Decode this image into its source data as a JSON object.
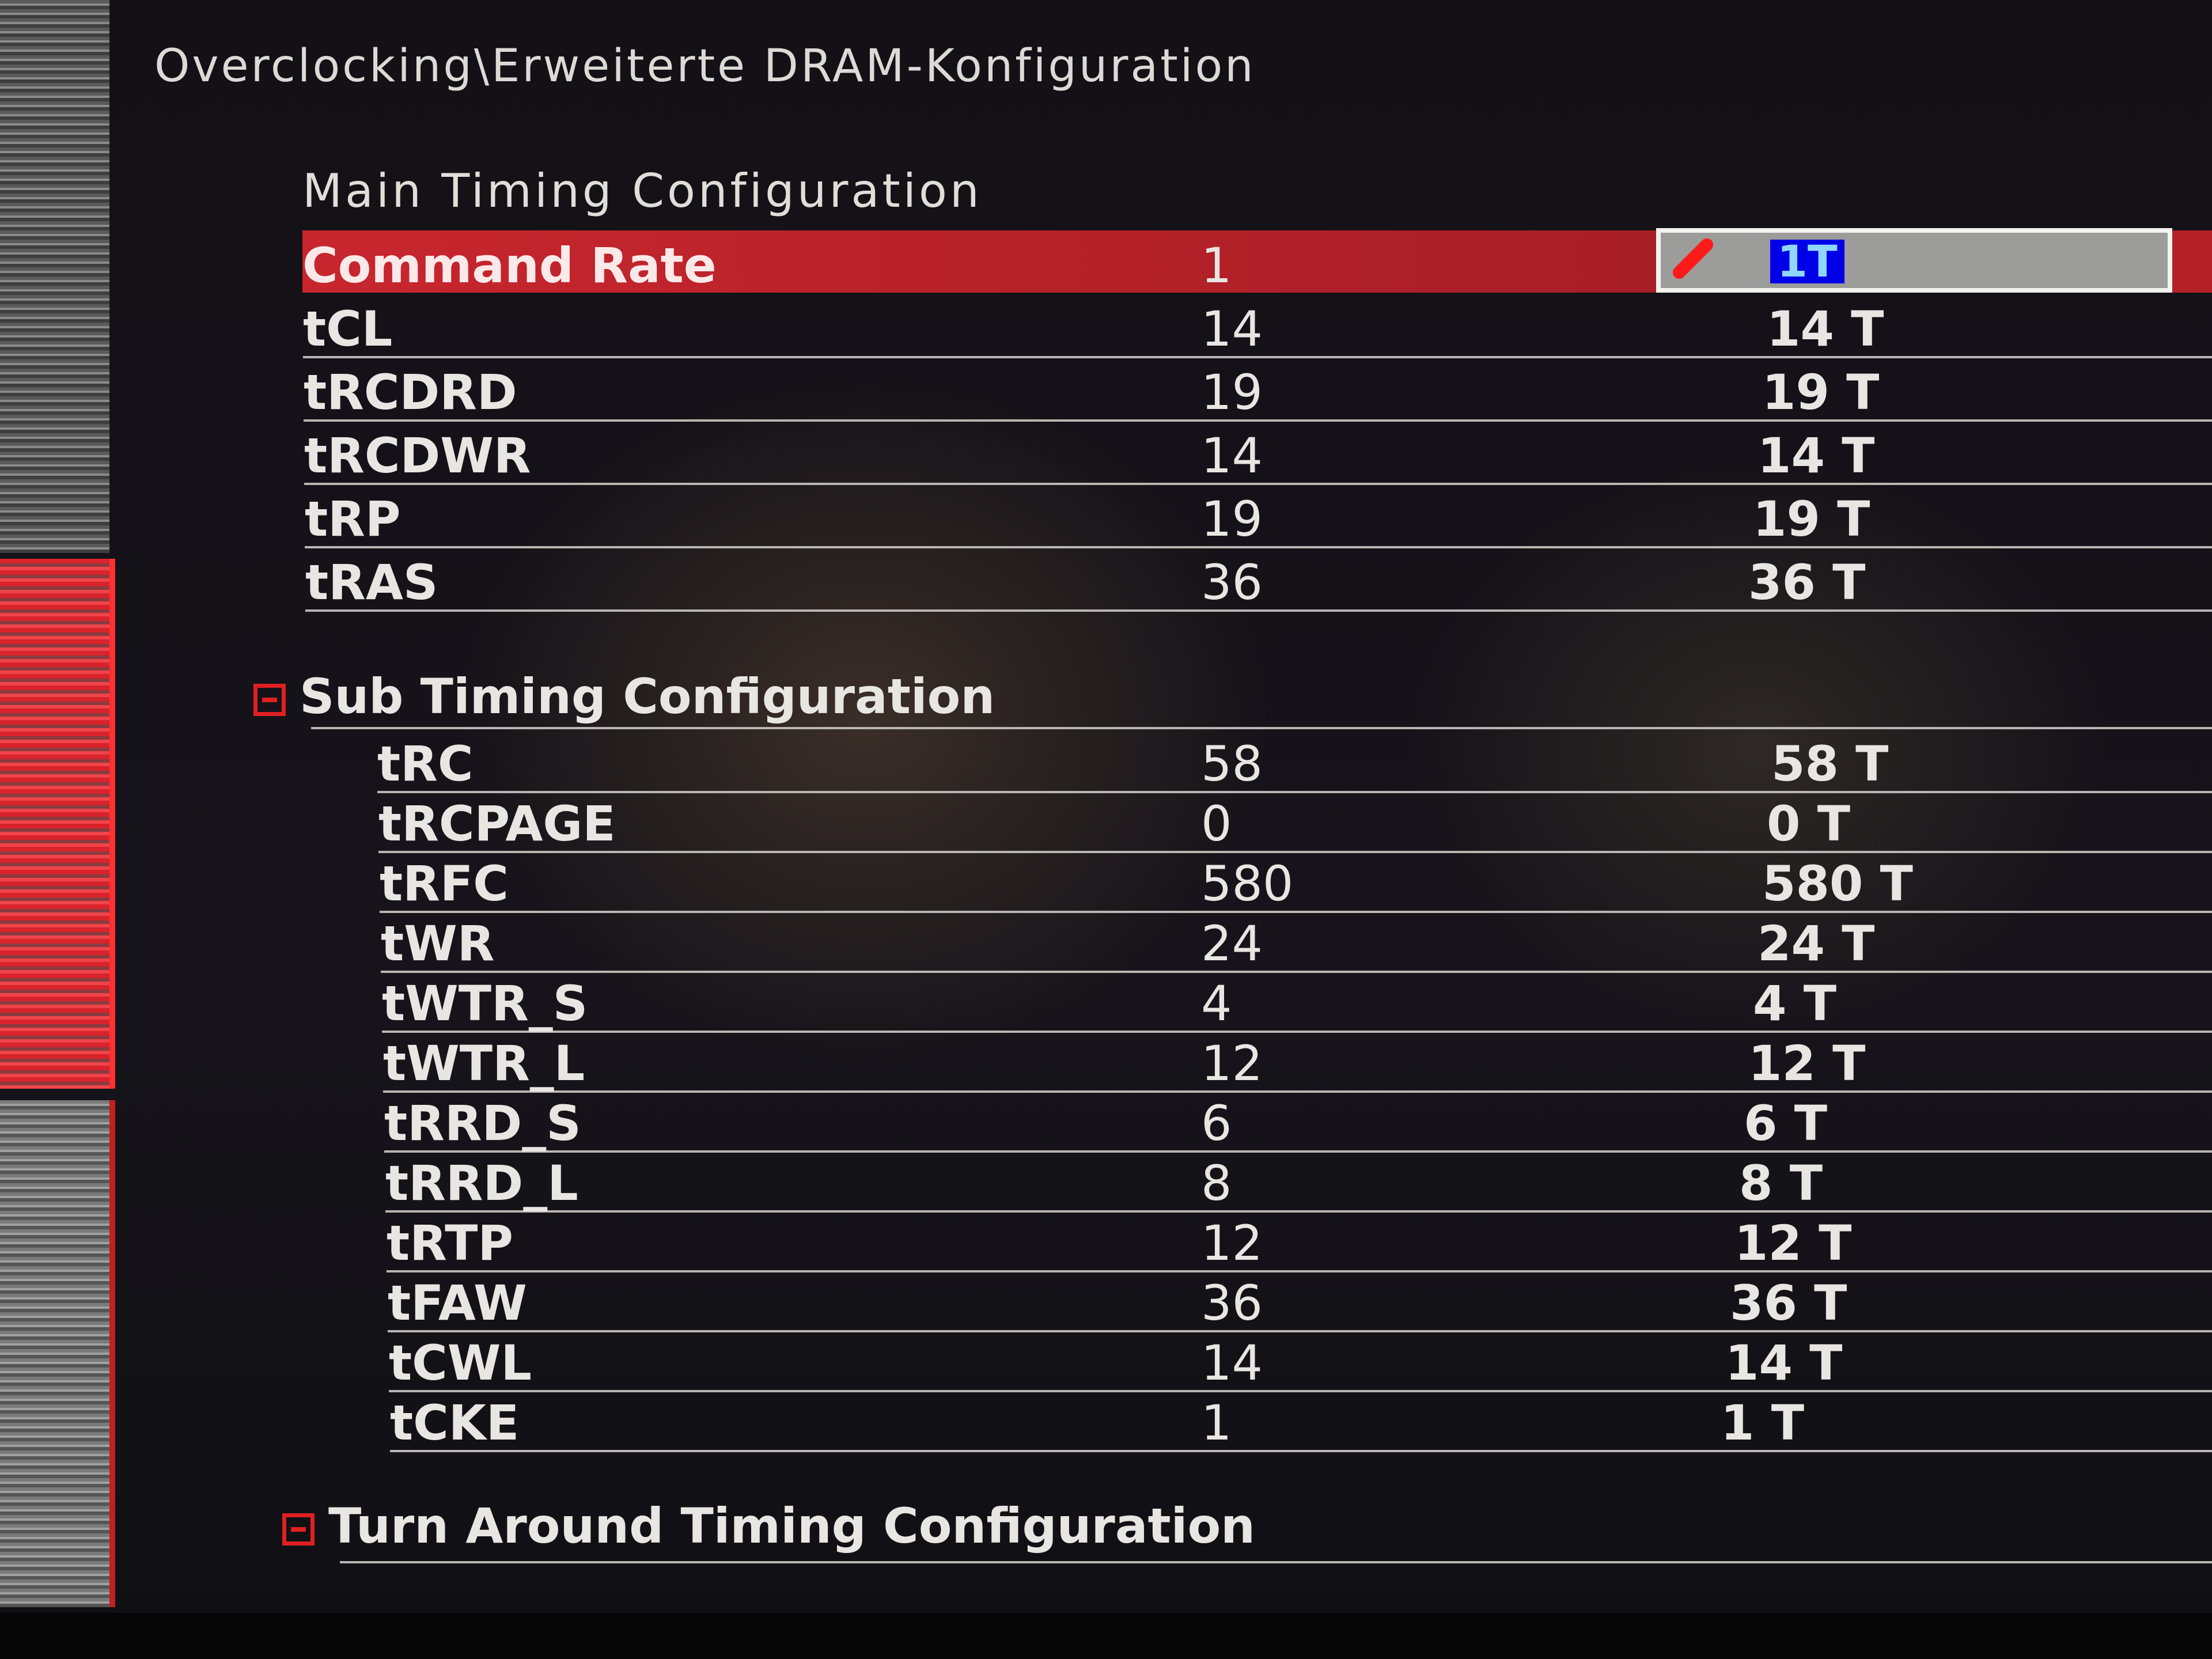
{
  "breadcrumb": "Overclocking\\Erweiterte DRAM-Konfiguration",
  "main_section": {
    "title": "Main Timing Configuration",
    "rows": [
      {
        "name": "Command Rate",
        "current": "1",
        "setting": "1T",
        "selected": true
      },
      {
        "name": "tCL",
        "current": "14",
        "setting": "14 T"
      },
      {
        "name": "tRCDRD",
        "current": "19",
        "setting": "19 T"
      },
      {
        "name": "tRCDWR",
        "current": "14",
        "setting": "14 T"
      },
      {
        "name": "tRP",
        "current": "19",
        "setting": "19 T"
      },
      {
        "name": "tRAS",
        "current": "36",
        "setting": "36 T"
      }
    ]
  },
  "sub_section": {
    "title": "Sub Timing Configuration",
    "icon": "collapse-minus-icon",
    "rows": [
      {
        "name": "tRC",
        "current": "58",
        "setting": "58 T"
      },
      {
        "name": "tRCPAGE",
        "current": "0",
        "setting": "0 T"
      },
      {
        "name": "tRFC",
        "current": "580",
        "setting": "580 T"
      },
      {
        "name": "tWR",
        "current": "24",
        "setting": "24 T"
      },
      {
        "name": "tWTR_S",
        "current": "4",
        "setting": "4 T"
      },
      {
        "name": "tWTR_L",
        "current": "12",
        "setting": "12 T"
      },
      {
        "name": "tRRD_S",
        "current": "6",
        "setting": "6 T"
      },
      {
        "name": "tRRD_L",
        "current": "8",
        "setting": "8 T"
      },
      {
        "name": "tRTP",
        "current": "12",
        "setting": "12 T"
      },
      {
        "name": "tFAW",
        "current": "36",
        "setting": "36 T"
      },
      {
        "name": "tCWL",
        "current": "14",
        "setting": "14 T"
      },
      {
        "name": "tCKE",
        "current": "1",
        "setting": "1 T"
      }
    ]
  },
  "turnaround_section": {
    "title": "Turn Around Timing Configuration",
    "icon": "collapse-minus-icon"
  },
  "colors": {
    "highlight": "#c8262e",
    "selection": "#0000e8",
    "icon_red": "#e02020"
  }
}
